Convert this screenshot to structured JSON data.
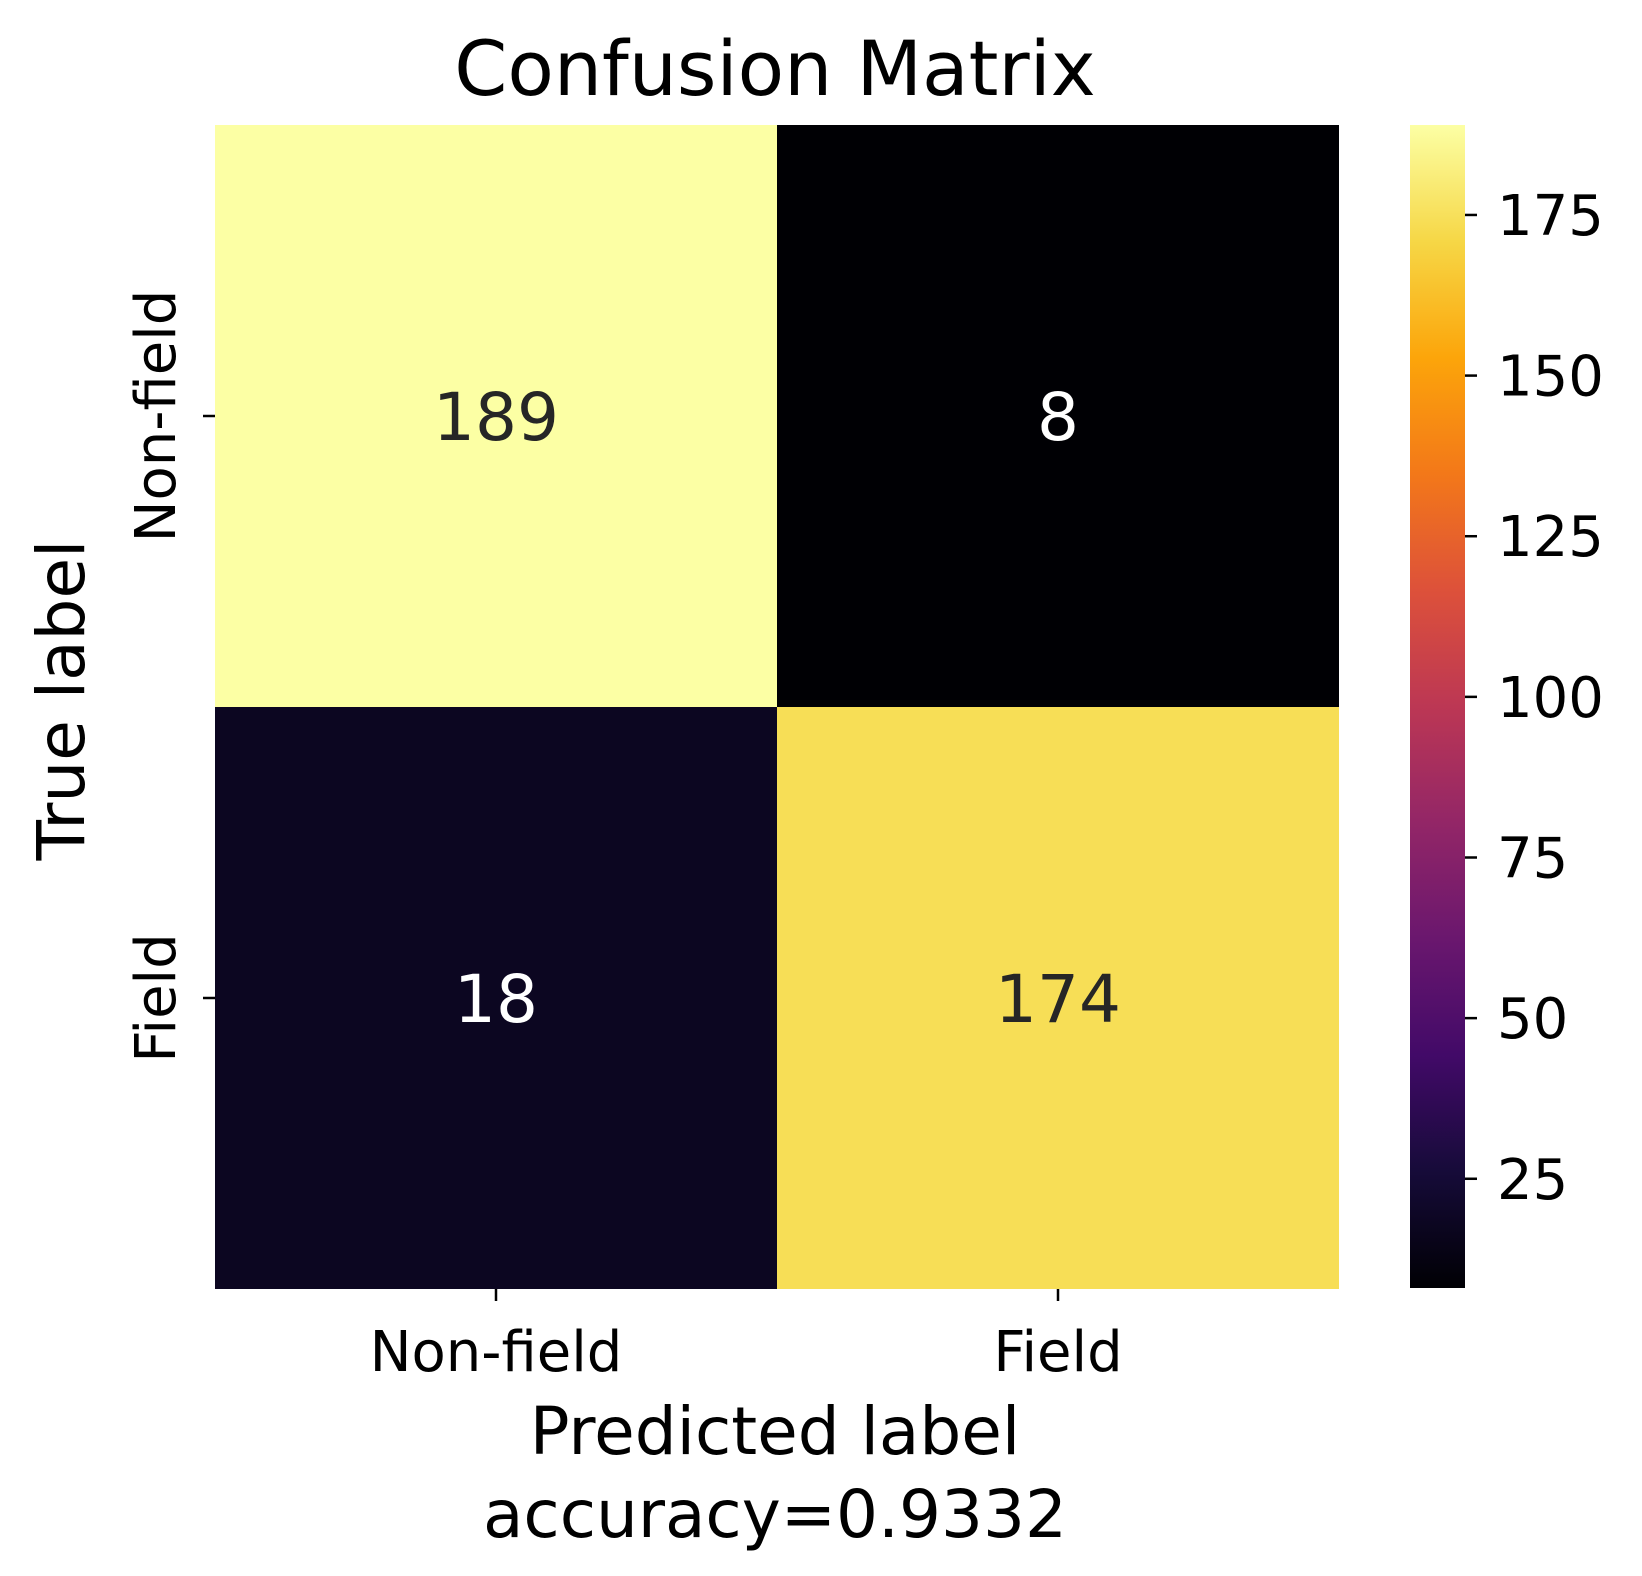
{
  "chart_data": {
    "type": "heatmap",
    "title": "Confusion Matrix",
    "xlabel": "Predicted label",
    "xlabel_sub": "accuracy=0.9332",
    "ylabel": "True label",
    "x_categories": [
      "Non-field",
      "Field"
    ],
    "y_categories": [
      "Non-field",
      "Field"
    ],
    "values": [
      [
        189,
        8
      ],
      [
        18,
        174
      ]
    ],
    "colormap": "inferno",
    "colorbar": {
      "range": [
        8,
        189
      ],
      "ticks": [
        25,
        50,
        75,
        100,
        125,
        150,
        175
      ]
    },
    "text_colors": {
      "light_cell": "#262626",
      "dark_cell": "#ffffff"
    }
  }
}
